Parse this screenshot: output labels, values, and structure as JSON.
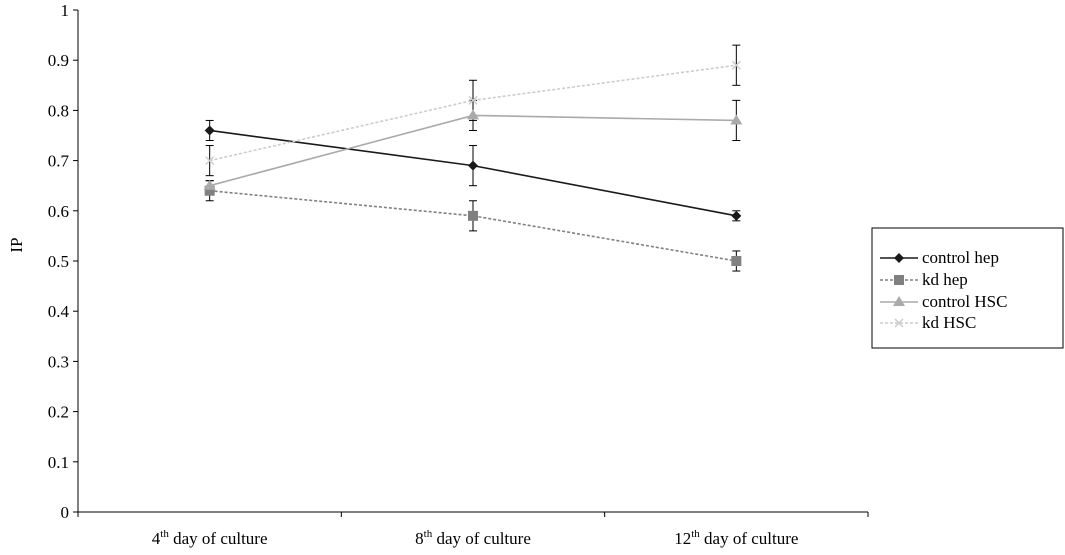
{
  "chart_data": {
    "type": "line",
    "ylabel": "IP",
    "ylim": [
      0,
      1
    ],
    "yticks": [
      "0",
      "0.1",
      "0.2",
      "0.3",
      "0.4",
      "0.5",
      "0.6",
      "0.7",
      "0.8",
      "0.9",
      "1"
    ],
    "categories": [
      {
        "ordinal": "4",
        "sup": "th",
        "rest": " day of culture"
      },
      {
        "ordinal": "8",
        "sup": "th",
        "rest": " day of culture"
      },
      {
        "ordinal": "12",
        "sup": "th",
        "rest": " day of culture"
      }
    ],
    "legend_position": "right",
    "grid": false,
    "series": [
      {
        "name": "control hep",
        "values": [
          0.76,
          0.69,
          0.59
        ],
        "errors": [
          0.02,
          0.04,
          0.01
        ],
        "color": "#1a1a1a",
        "marker": "diamond",
        "dash": "none"
      },
      {
        "name": "kd hep",
        "values": [
          0.64,
          0.59,
          0.5
        ],
        "errors": [
          0.02,
          0.03,
          0.02
        ],
        "color": "#808080",
        "marker": "square",
        "dash": "3,2"
      },
      {
        "name": "control HSC",
        "values": [
          0.65,
          0.79,
          0.78
        ],
        "errors": [
          0.01,
          0.03,
          0.04
        ],
        "color": "#aaaaaa",
        "marker": "triangle",
        "dash": "none"
      },
      {
        "name": "kd HSC",
        "values": [
          0.7,
          0.82,
          0.89
        ],
        "errors": [
          0.03,
          0.04,
          0.04
        ],
        "color": "#cccccc",
        "marker": "cross",
        "dash": "3,2"
      }
    ]
  }
}
